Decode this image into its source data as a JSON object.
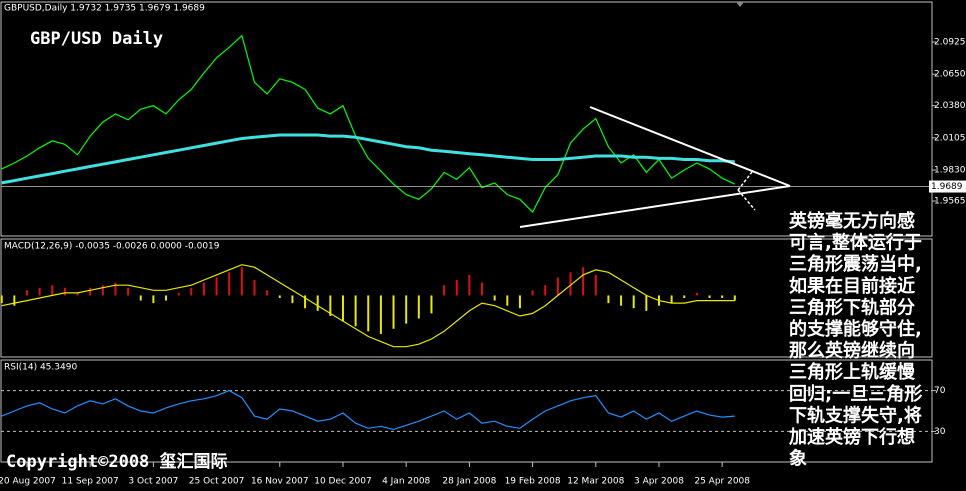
{
  "chart_data": [
    {
      "type": "line",
      "title": "GBP/USD Daily",
      "subtitle": "GBPUSD,Daily  1.9732 1.9735 1.9679 1.9689",
      "categories": [
        null,
        null,
        "20 Aug 2007",
        null,
        null,
        null,
        null,
        "11 Sep 2007",
        null,
        null,
        null,
        null,
        "3 Oct 2007",
        null,
        null,
        null,
        null,
        "25 Oct 2007",
        null,
        null,
        null,
        null,
        "16 Nov 2007",
        null,
        null,
        null,
        null,
        "10 Dec 2007",
        null,
        null,
        null,
        null,
        "4 Jan 2008",
        null,
        null,
        null,
        null,
        "28 Jan 2008",
        null,
        null,
        null,
        null,
        "19 Feb 2008",
        null,
        null,
        null,
        null,
        "12 Mar 2008",
        null,
        null,
        null,
        null,
        "3 Apr 2008",
        null,
        null,
        null,
        null,
        "25 Apr 2008",
        null
      ],
      "series": [
        {
          "color": "#00ff00",
          "values": [
            1.984,
            1.989,
            1.995,
            2.002,
            2.008,
            2.005,
            1.996,
            2.012,
            2.024,
            2.031,
            2.026,
            2.035,
            2.038,
            2.031,
            2.043,
            2.052,
            2.066,
            2.079,
            2.088,
            2.098,
            2.058,
            2.048,
            2.061,
            2.058,
            2.052,
            2.036,
            2.031,
            2.038,
            2.012,
            1.993,
            1.982,
            1.971,
            1.962,
            1.958,
            1.967,
            1.981,
            1.975,
            1.985,
            1.968,
            1.972,
            1.962,
            1.958,
            1.947,
            1.968,
            1.979,
            2.006,
            2.018,
            2.027,
            2.003,
            1.989,
            1.996,
            1.981,
            1.992,
            1.976,
            1.983,
            1.989,
            1.984,
            1.976,
            1.971
          ]
        },
        {
          "color": "#40e0e0",
          "values": [
            1.972,
            1.974,
            1.976,
            1.978,
            1.98,
            1.982,
            1.984,
            1.986,
            1.988,
            1.99,
            1.992,
            1.994,
            1.996,
            1.998,
            2.0,
            2.002,
            2.004,
            2.006,
            2.008,
            2.01,
            2.011,
            2.012,
            2.013,
            2.013,
            2.013,
            2.013,
            2.012,
            2.012,
            2.011,
            2.009,
            2.007,
            2.005,
            2.003,
            2.002,
            2.0,
            1.999,
            1.998,
            1.997,
            1.996,
            1.995,
            1.994,
            1.993,
            1.992,
            1.992,
            1.992,
            1.993,
            1.994,
            1.995,
            1.995,
            1.995,
            1.994,
            1.994,
            1.993,
            1.993,
            1.992,
            1.992,
            1.991,
            1.991,
            1.99
          ]
        }
      ],
      "last_price": 1.9689,
      "ylim": [
        1.9266,
        2.1267
      ],
      "yticks": [
        2.0925,
        {
          "value": 2.065,
          "label": "2.0650"
        },
        {
          "value": 2.038,
          "label": "2.0380"
        },
        2.0105,
        {
          "value": 1.983,
          "label": "1.9830"
        },
        1.9565
      ],
      "annotations": [
        "英镑毫无方向感",
        "可言,整体运行于",
        "三角形震荡当中,",
        "如果在目前接近",
        "三角形下轨部分",
        "的支撑能够守住,",
        "那么英镑继续向",
        "三角形上轨缓慢",
        "回归;一旦三角形",
        "下轨支撑失守,将",
        "加速英镑下行想",
        "象"
      ],
      "copyright": "Copyright©2008 玺汇国际"
    },
    {
      "type": "bar",
      "title": "MACD(12,26,9) -0.0035 -0.0026 0.0000 -0.0019",
      "values": [
        -0.003,
        -0.004,
        0.002,
        0.003,
        0.004,
        0.003,
        0.001,
        0.003,
        0.004,
        0.005,
        0.003,
        -0.002,
        -0.003,
        -0.002,
        0.001,
        0.003,
        0.005,
        0.007,
        0.009,
        0.011,
        0.006,
        0.002,
        -0.001,
        -0.003,
        -0.005,
        -0.006,
        -0.008,
        -0.01,
        -0.012,
        -0.014,
        -0.015,
        -0.013,
        -0.011,
        -0.009,
        -0.007,
        0.004,
        0.006,
        0.008,
        0.005,
        -0.002,
        -0.004,
        -0.005,
        0.002,
        0.004,
        0.007,
        0.009,
        0.011,
        0.008,
        -0.003,
        -0.004,
        -0.005,
        -0.006,
        -0.004,
        -0.003,
        -0.001,
        0.001,
        -0.001,
        -0.001,
        -0.002
      ],
      "positive_color": "#e01010",
      "negative_color": "#e8e800",
      "series": [
        {
          "color": "#e8e800",
          "values": [
            -0.004,
            -0.003,
            -0.002,
            -0.001,
            0.0,
            0.001,
            0.001,
            0.002,
            0.003,
            0.004,
            0.004,
            0.003,
            0.002,
            0.002,
            0.003,
            0.004,
            0.006,
            0.008,
            0.01,
            0.012,
            0.011,
            0.008,
            0.005,
            0.002,
            -0.001,
            -0.004,
            -0.007,
            -0.01,
            -0.013,
            -0.016,
            -0.018,
            -0.02,
            -0.02,
            -0.019,
            -0.017,
            -0.014,
            -0.01,
            -0.006,
            -0.003,
            -0.004,
            -0.006,
            -0.008,
            -0.007,
            -0.004,
            0.0,
            0.004,
            0.008,
            0.01,
            0.009,
            0.006,
            0.003,
            0.0,
            -0.002,
            -0.003,
            -0.003,
            -0.002,
            -0.002,
            -0.002,
            -0.002
          ]
        }
      ],
      "ylim": [
        -0.024,
        0.022
      ]
    },
    {
      "type": "line",
      "title": "RSI(14) 45.3490",
      "series": [
        {
          "color": "#1e90ff",
          "values": [
            45,
            50,
            55,
            58,
            52,
            48,
            55,
            60,
            57,
            62,
            55,
            50,
            48,
            53,
            57,
            60,
            62,
            65,
            70,
            63,
            45,
            42,
            52,
            50,
            45,
            40,
            42,
            48,
            38,
            33,
            35,
            32,
            36,
            40,
            45,
            50,
            42,
            48,
            38,
            40,
            35,
            33,
            42,
            50,
            55,
            60,
            63,
            65,
            48,
            44,
            50,
            42,
            48,
            40,
            45,
            50,
            46,
            44,
            45
          ]
        }
      ],
      "ylim": [
        0,
        100
      ],
      "yticks": [
        70,
        30
      ]
    }
  ]
}
